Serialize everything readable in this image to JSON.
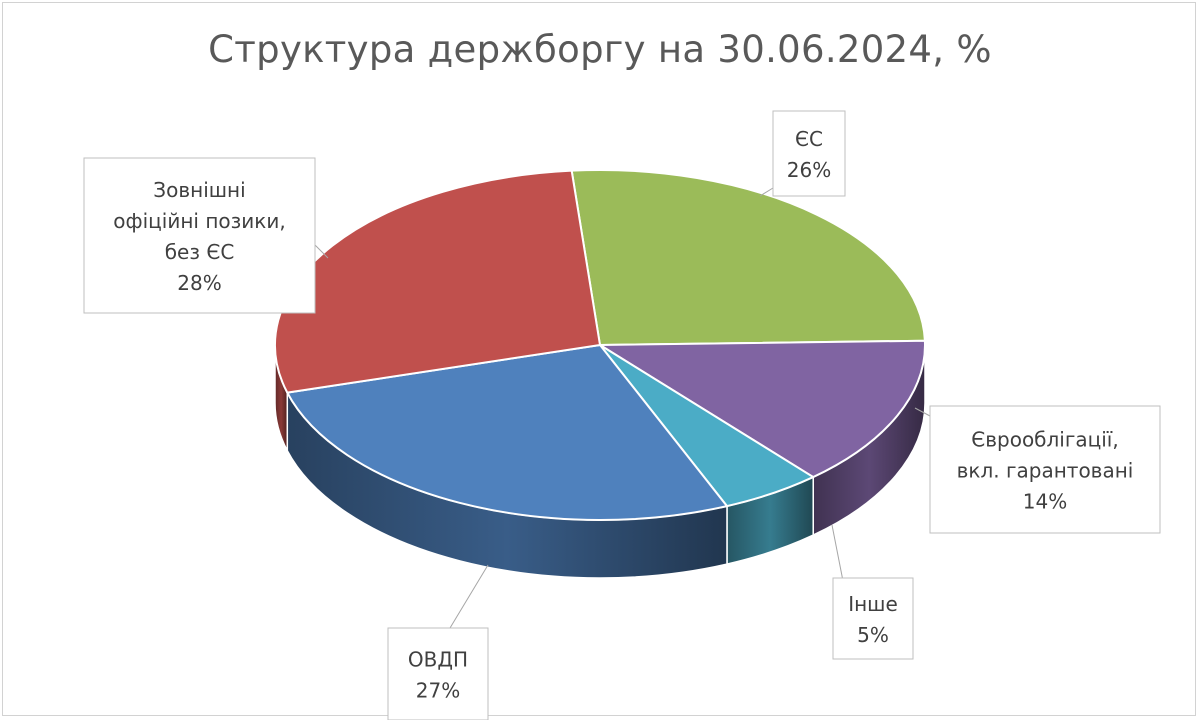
{
  "chart_data": {
    "type": "pie",
    "title": "Структура держборгу на 30.06.2024, %",
    "slices": [
      {
        "label": "ЄС",
        "value": 26,
        "value_label": "26%",
        "color": "#9bbb59"
      },
      {
        "label": "Єврооблігації, вкл. гарантовані",
        "value": 14,
        "value_label": "14%",
        "color": "#8064a2"
      },
      {
        "label": "Інше",
        "value": 5,
        "value_label": "5%",
        "color": "#4bacc6"
      },
      {
        "label": "ОВДП",
        "value": 27,
        "value_label": "27%",
        "color": "#4f81bd"
      },
      {
        "label": "Зовнішні офіційні позики, без ЄС",
        "value": 28,
        "value_label": "28%",
        "color": "#c0504d"
      }
    ]
  }
}
